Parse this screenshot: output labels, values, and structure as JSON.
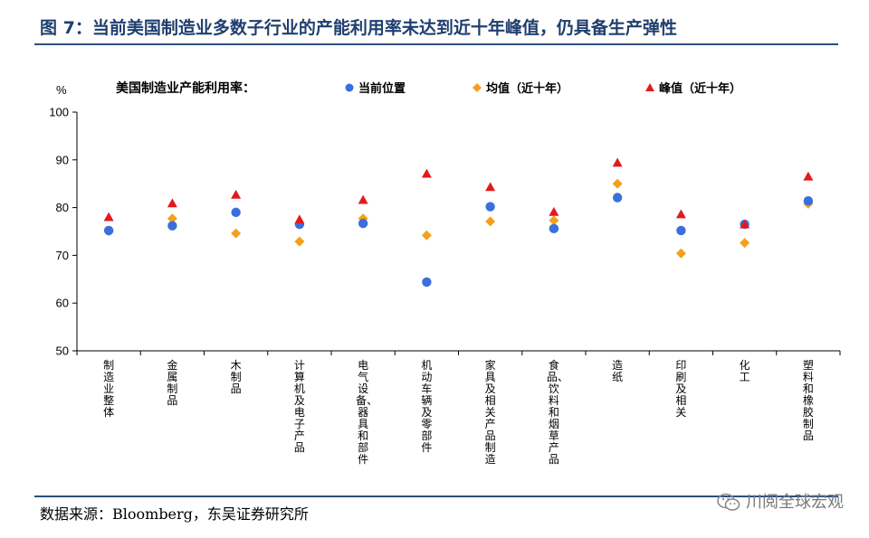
{
  "header": {
    "title": "图 7：当前美国制造业多数子行业的产能利用率未达到近十年峰值，仍具备生产弹性"
  },
  "footer": {
    "source": "数据来源：Bloomberg，东吴证券研究所",
    "watermark": "川阅全球宏观"
  },
  "colors": {
    "title": "#1f3f6e",
    "current": "#3a6fdc",
    "mean": "#f5a01a",
    "peak": "#e31a1c"
  },
  "chart_data": {
    "type": "scatter",
    "title": "美国制造业产能利用率：",
    "ylabel": "%",
    "ylim": [
      50,
      100
    ],
    "yticks": [
      50,
      60,
      70,
      80,
      90,
      100
    ],
    "grid": false,
    "legend": "top",
    "categories": [
      "制造业整体",
      "金属制品",
      "木制品",
      "计算机及电子产品",
      "电气设备、器具和部件",
      "机动车辆及零部件",
      "家具及相关产品制造",
      "食品、饮料和烟草产品",
      "造纸",
      "印刷及相关",
      "化工",
      "塑料和橡胶制品"
    ],
    "series": [
      {
        "name": "当前位置",
        "marker": "circle",
        "values": [
          75.2,
          76.2,
          79.0,
          76.5,
          76.7,
          64.4,
          80.2,
          75.6,
          82.1,
          75.2,
          76.5,
          81.4
        ]
      },
      {
        "name": "均值（近十年）",
        "marker": "diamond",
        "values": [
          75.1,
          77.7,
          74.6,
          72.9,
          77.7,
          74.2,
          77.1,
          77.3,
          85.0,
          70.4,
          72.6,
          80.8
        ]
      },
      {
        "name": "峰值（近十年）",
        "marker": "triangle",
        "values": [
          78.0,
          80.9,
          82.7,
          77.5,
          81.6,
          87.1,
          84.3,
          79.1,
          89.4,
          78.6,
          76.5,
          86.5
        ]
      }
    ]
  }
}
